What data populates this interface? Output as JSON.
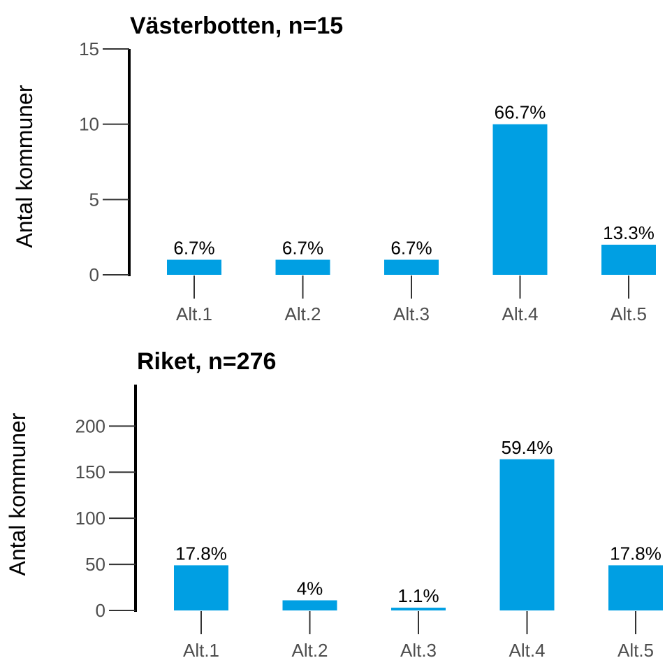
{
  "colors": {
    "bar": "#009FE3"
  },
  "chart_data": [
    {
      "type": "bar",
      "title": "Västerbotten, n=15",
      "ylabel": "Antal kommuner",
      "xlabel": "",
      "categories": [
        "Alt.1",
        "Alt.2",
        "Alt.3",
        "Alt.4",
        "Alt.5"
      ],
      "values": [
        1,
        1,
        1,
        10,
        2
      ],
      "labels": [
        "6.7%",
        "6.7%",
        "6.7%",
        "66.7%",
        "13.3%"
      ],
      "ylim": [
        0,
        15
      ],
      "yticks": [
        0,
        5,
        10,
        15
      ],
      "grid": false,
      "legend": "none"
    },
    {
      "type": "bar",
      "title": "Riket, n=276",
      "ylabel": "Antal kommuner",
      "xlabel": "",
      "categories": [
        "Alt.1",
        "Alt.2",
        "Alt.3",
        "Alt.4",
        "Alt.5"
      ],
      "values": [
        49,
        11,
        3,
        164,
        49
      ],
      "labels": [
        "17.8%",
        "4%",
        "1.1%",
        "59.4%",
        "17.8%"
      ],
      "ylim": [
        0,
        245
      ],
      "yticks": [
        0,
        50,
        100,
        150,
        200
      ],
      "grid": false,
      "legend": "none"
    }
  ]
}
